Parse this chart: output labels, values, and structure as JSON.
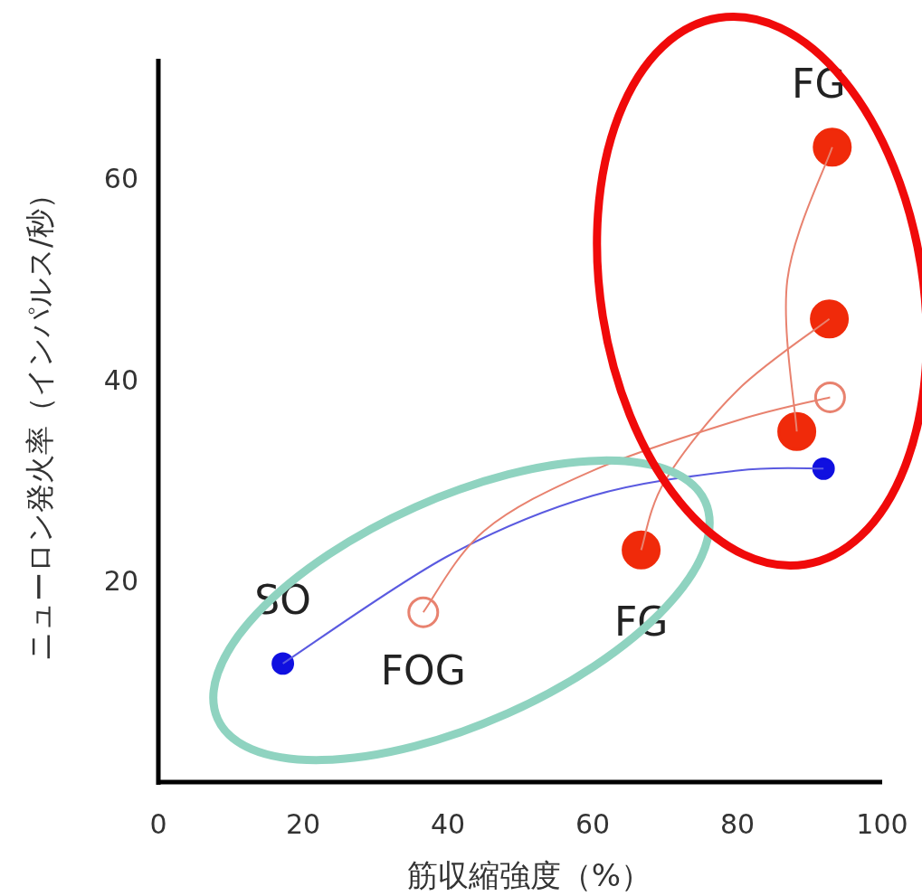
{
  "chart_data": {
    "type": "line",
    "xlabel": "筋収縮強度（%）",
    "ylabel": "ニューロン発火率（インパルス/秒）",
    "xlim": [
      0,
      100
    ],
    "xticks": [
      0,
      20,
      40,
      60,
      80,
      100
    ],
    "ylim": [
      0,
      72
    ],
    "yticks": [
      20,
      40,
      60
    ],
    "grid": false,
    "series": [
      {
        "color": "#5a5ae0",
        "x": [
          17.2,
          40,
          60,
          80,
          91.9
        ],
        "values": [
          11.8,
          22.5,
          28.5,
          31,
          31.2
        ]
      },
      {
        "color": "#e8826f",
        "x": [
          36.6,
          45,
          60,
          80,
          92.8
        ],
        "values": [
          16.9,
          25,
          31,
          36,
          38.3
        ]
      },
      {
        "color": "#e8826f",
        "x": [
          66.7,
          70,
          80,
          92.7
        ],
        "values": [
          23.1,
          30,
          39,
          46.1
        ]
      },
      {
        "color": "#e8826f",
        "x": [
          88.2,
          86.9,
          93.1
        ],
        "values": [
          34.9,
          50,
          63.2
        ]
      },
      {
        "type": "bubble",
        "color": "#1010e0",
        "colors": [
          "#1010e0",
          "#1010e0"
        ],
        "x": [
          17.2,
          91.9
        ],
        "values": [
          11.8,
          31.2
        ],
        "sizes": [
          0.3,
          0.3
        ]
      },
      {
        "type": "bubble",
        "color": "#e8826f",
        "colors": [
          "#ffffff",
          "#ffffff"
        ],
        "x": [
          36.6,
          92.8
        ],
        "values": [
          16.9,
          38.3
        ],
        "sizes": [
          0.64,
          0.64
        ]
      },
      {
        "type": "bubble",
        "color": "#f02a0a",
        "colors": [
          "#f02a0a",
          "#f02a0a",
          "#f02a0a",
          "#f02a0a"
        ],
        "x": [
          66.7,
          92.7,
          88.2,
          93.1
        ],
        "values": [
          23.1,
          46.1,
          34.9,
          63.2
        ],
        "sizes": [
          1,
          1,
          1,
          1
        ]
      }
    ],
    "annotations": [
      {
        "text": "SO",
        "x": 17.2,
        "y": 11.8
      },
      {
        "text": "FOG",
        "x": 36.6,
        "y": 16.9
      },
      {
        "text": "FG",
        "x": 66.7,
        "y": 23.1
      },
      {
        "text": "FG",
        "x": 93.1,
        "y": 63.2
      }
    ]
  }
}
